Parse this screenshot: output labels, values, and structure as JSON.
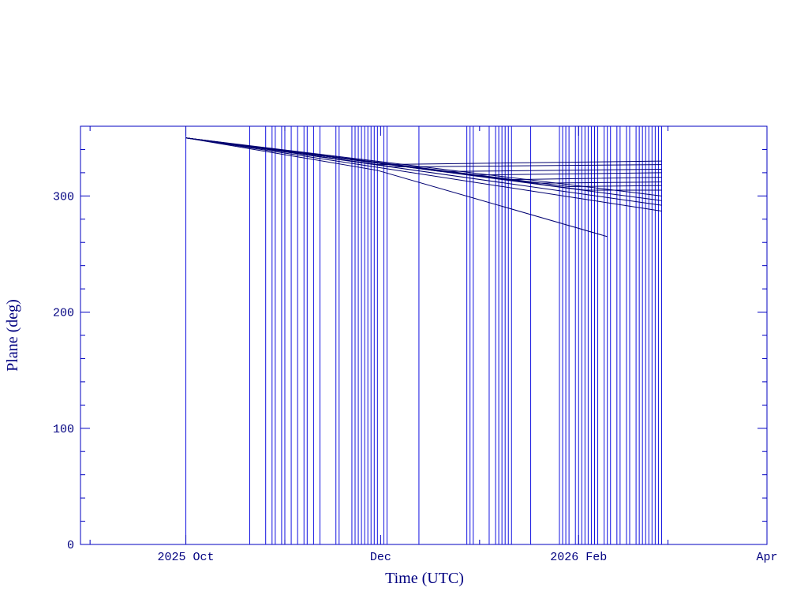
{
  "chart_data": {
    "type": "line",
    "xlabel": "Time (UTC)",
    "ylabel": "Plane (deg)",
    "xlim": [
      -33,
      182
    ],
    "ylim": [
      0,
      360
    ],
    "xticks": [
      {
        "value": 0,
        "label": "2025 Oct"
      },
      {
        "value": 61,
        "label": "Dec"
      },
      {
        "value": 123,
        "label": "2026 Feb"
      },
      {
        "value": 182,
        "label": "Apr"
      }
    ],
    "xminorticks": [
      -30,
      31,
      92,
      151
    ],
    "yticks": [
      0,
      100,
      200,
      300
    ],
    "yminorticks": [
      20,
      40,
      60,
      80,
      120,
      140,
      160,
      180,
      220,
      240,
      260,
      280,
      320,
      340
    ],
    "event_color": "#1010e0",
    "events": [
      0,
      20,
      25,
      27,
      28,
      30,
      31,
      33,
      35,
      37,
      38,
      40,
      42,
      47,
      48,
      52,
      53,
      54,
      55,
      56,
      57,
      58,
      59,
      60,
      62,
      63,
      73,
      88,
      89,
      90,
      95,
      97,
      98,
      99,
      100,
      101,
      102,
      108,
      117,
      118,
      119,
      120,
      122,
      123,
      124,
      125,
      126,
      127,
      128,
      129,
      131,
      132,
      133,
      135,
      136,
      138,
      139,
      141,
      142,
      143,
      144,
      145,
      146,
      147,
      148,
      149
    ],
    "series": [
      {
        "color": "#000070",
        "x": [
          0,
          60,
          149
        ],
        "values": [
          350,
          327,
          330
        ]
      },
      {
        "color": "#000070",
        "x": [
          0,
          65,
          149
        ],
        "values": [
          350,
          325,
          327
        ]
      },
      {
        "color": "#000070",
        "x": [
          0,
          80,
          149
        ],
        "values": [
          350,
          321,
          323
        ]
      },
      {
        "color": "#000070",
        "x": [
          0,
          90,
          149
        ],
        "values": [
          350,
          318,
          320
        ]
      },
      {
        "color": "#000070",
        "x": [
          0,
          100,
          149
        ],
        "values": [
          350,
          314,
          316
        ]
      },
      {
        "color": "#000070",
        "x": [
          0,
          110,
          149
        ],
        "values": [
          350,
          311,
          312
        ]
      },
      {
        "color": "#000070",
        "x": [
          0,
          120,
          149
        ],
        "values": [
          350,
          308,
          309
        ]
      },
      {
        "color": "#000070",
        "x": [
          0,
          125,
          149
        ],
        "values": [
          350,
          305,
          305
        ]
      },
      {
        "color": "#000070",
        "x": [
          0,
          149
        ],
        "values": [
          350,
          300
        ]
      },
      {
        "color": "#000070",
        "x": [
          0,
          149
        ],
        "values": [
          350,
          296
        ]
      },
      {
        "color": "#000070",
        "x": [
          0,
          149
        ],
        "values": [
          350,
          292
        ]
      },
      {
        "color": "#000070",
        "x": [
          0,
          149
        ],
        "values": [
          350,
          287
        ]
      },
      {
        "color": "#000070",
        "x": [
          0,
          60,
          132
        ],
        "values": [
          350,
          322,
          265
        ]
      }
    ]
  }
}
